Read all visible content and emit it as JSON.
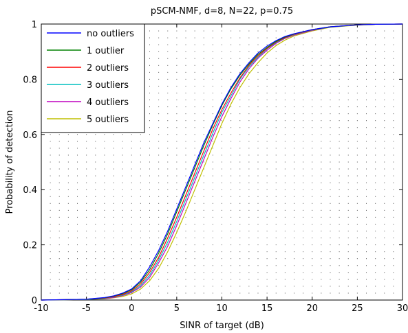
{
  "chart_data": {
    "type": "line",
    "title": "pSCM-NMF, d=8, N=22, p=0.75",
    "xlabel": "SINR of target (dB)",
    "ylabel": "Probability of detection",
    "xlim": [
      -10,
      30
    ],
    "ylim": [
      0,
      1
    ],
    "xticks": [
      -10,
      -5,
      0,
      5,
      10,
      15,
      20,
      25,
      30
    ],
    "yticks": [
      0,
      0.2,
      0.4,
      0.6,
      0.8,
      1
    ],
    "xtick_labels": [
      "-10",
      "-5",
      "0",
      "5",
      "10",
      "15",
      "20",
      "25",
      "30"
    ],
    "ytick_labels": [
      "0",
      "0.2",
      "0.4",
      "0.6",
      "0.8",
      "1"
    ],
    "grid": "dotted",
    "legend_position": "top-left",
    "x": [
      -10,
      -5,
      -3,
      -2,
      -1,
      0,
      1,
      2,
      3,
      4,
      5,
      6,
      7,
      8,
      9,
      10,
      11,
      12,
      13,
      14,
      15,
      16,
      17,
      18,
      20,
      22,
      25,
      27,
      30
    ],
    "series": [
      {
        "name": "no outliers",
        "color": "#0000ff",
        "values": [
          0.0,
          0.003,
          0.009,
          0.015,
          0.025,
          0.04,
          0.07,
          0.12,
          0.18,
          0.25,
          0.33,
          0.41,
          0.49,
          0.57,
          0.64,
          0.71,
          0.77,
          0.82,
          0.86,
          0.895,
          0.92,
          0.94,
          0.955,
          0.965,
          0.98,
          0.99,
          0.997,
          0.999,
          1.0
        ]
      },
      {
        "name": "1 outlier",
        "color": "#008000",
        "values": [
          0.0,
          0.003,
          0.008,
          0.014,
          0.023,
          0.037,
          0.065,
          0.11,
          0.17,
          0.24,
          0.32,
          0.4,
          0.48,
          0.56,
          0.635,
          0.705,
          0.765,
          0.815,
          0.855,
          0.89,
          0.915,
          0.937,
          0.953,
          0.964,
          0.98,
          0.99,
          0.997,
          0.999,
          1.0
        ]
      },
      {
        "name": "2 outliers",
        "color": "#ff0000",
        "values": [
          0.0,
          0.003,
          0.007,
          0.012,
          0.02,
          0.033,
          0.058,
          0.1,
          0.155,
          0.225,
          0.3,
          0.38,
          0.46,
          0.54,
          0.62,
          0.69,
          0.75,
          0.805,
          0.85,
          0.885,
          0.912,
          0.935,
          0.951,
          0.963,
          0.979,
          0.99,
          0.997,
          0.999,
          1.0
        ]
      },
      {
        "name": "3 outliers",
        "color": "#00bfbf",
        "values": [
          0.0,
          0.002,
          0.006,
          0.011,
          0.018,
          0.03,
          0.052,
          0.09,
          0.145,
          0.21,
          0.285,
          0.365,
          0.445,
          0.525,
          0.605,
          0.68,
          0.74,
          0.8,
          0.845,
          0.88,
          0.91,
          0.933,
          0.95,
          0.962,
          0.978,
          0.989,
          0.997,
          0.999,
          1.0
        ]
      },
      {
        "name": "4 outliers",
        "color": "#bf00bf",
        "values": [
          0.0,
          0.002,
          0.005,
          0.009,
          0.016,
          0.027,
          0.047,
          0.082,
          0.135,
          0.195,
          0.27,
          0.35,
          0.43,
          0.51,
          0.59,
          0.665,
          0.73,
          0.79,
          0.838,
          0.876,
          0.905,
          0.93,
          0.948,
          0.96,
          0.977,
          0.989,
          0.997,
          0.999,
          1.0
        ]
      },
      {
        "name": "5 outliers",
        "color": "#bfbf00",
        "values": [
          0.0,
          0.002,
          0.004,
          0.008,
          0.013,
          0.022,
          0.04,
          0.07,
          0.115,
          0.175,
          0.245,
          0.32,
          0.4,
          0.48,
          0.56,
          0.64,
          0.71,
          0.77,
          0.82,
          0.86,
          0.895,
          0.922,
          0.942,
          0.957,
          0.975,
          0.988,
          0.996,
          0.999,
          1.0
        ]
      }
    ]
  }
}
